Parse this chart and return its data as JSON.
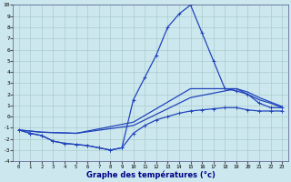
{
  "background_color": "#cce8ee",
  "grid_color": "#aacccc",
  "line_color": "#2244bb",
  "title": "Graphe des températures (°c)",
  "xlim": [
    -0.5,
    23.5
  ],
  "ylim": [
    -4,
    10
  ],
  "xticks": [
    0,
    1,
    2,
    3,
    4,
    5,
    6,
    7,
    8,
    9,
    10,
    11,
    12,
    13,
    14,
    15,
    16,
    17,
    18,
    19,
    20,
    21,
    22,
    23
  ],
  "yticks": [
    -4,
    -3,
    -2,
    -1,
    0,
    1,
    2,
    3,
    4,
    5,
    6,
    7,
    8,
    9,
    10
  ],
  "curve1_x": [
    0,
    1,
    2,
    3,
    4,
    5,
    6,
    7,
    8,
    9,
    10,
    11,
    12,
    13,
    14,
    15,
    16,
    17,
    18,
    19,
    20,
    21,
    22,
    23
  ],
  "curve1_y": [
    -1.2,
    -1.5,
    -1.7,
    -2.2,
    -2.4,
    -2.5,
    -2.6,
    -2.8,
    -3.0,
    -2.8,
    1.5,
    3.5,
    5.5,
    8.0,
    9.2,
    10.0,
    7.5,
    5.0,
    2.5,
    2.3,
    2.0,
    1.2,
    0.8,
    0.8
  ],
  "curve2_x": [
    0,
    2,
    5,
    10,
    15,
    19,
    20,
    21,
    22,
    23
  ],
  "curve2_y": [
    -1.2,
    -1.4,
    -1.5,
    -0.5,
    2.5,
    2.5,
    2.2,
    1.7,
    1.3,
    0.9
  ],
  "curve3_x": [
    0,
    2,
    5,
    10,
    15,
    19,
    20,
    21,
    22,
    23
  ],
  "curve3_y": [
    -1.2,
    -1.4,
    -1.5,
    -0.8,
    1.7,
    2.5,
    2.0,
    1.5,
    1.2,
    0.8
  ],
  "curve4_x": [
    0,
    1,
    2,
    3,
    4,
    5,
    6,
    7,
    8,
    9,
    10,
    11,
    12,
    13,
    14,
    15,
    16,
    17,
    18,
    19,
    20,
    21,
    22,
    23
  ],
  "curve4_y": [
    -1.2,
    -1.5,
    -1.7,
    -2.2,
    -2.4,
    -2.5,
    -2.6,
    -2.8,
    -3.0,
    -2.8,
    -1.5,
    -0.8,
    -0.3,
    0.0,
    0.3,
    0.5,
    0.6,
    0.7,
    0.8,
    0.8,
    0.6,
    0.5,
    0.5,
    0.5
  ]
}
